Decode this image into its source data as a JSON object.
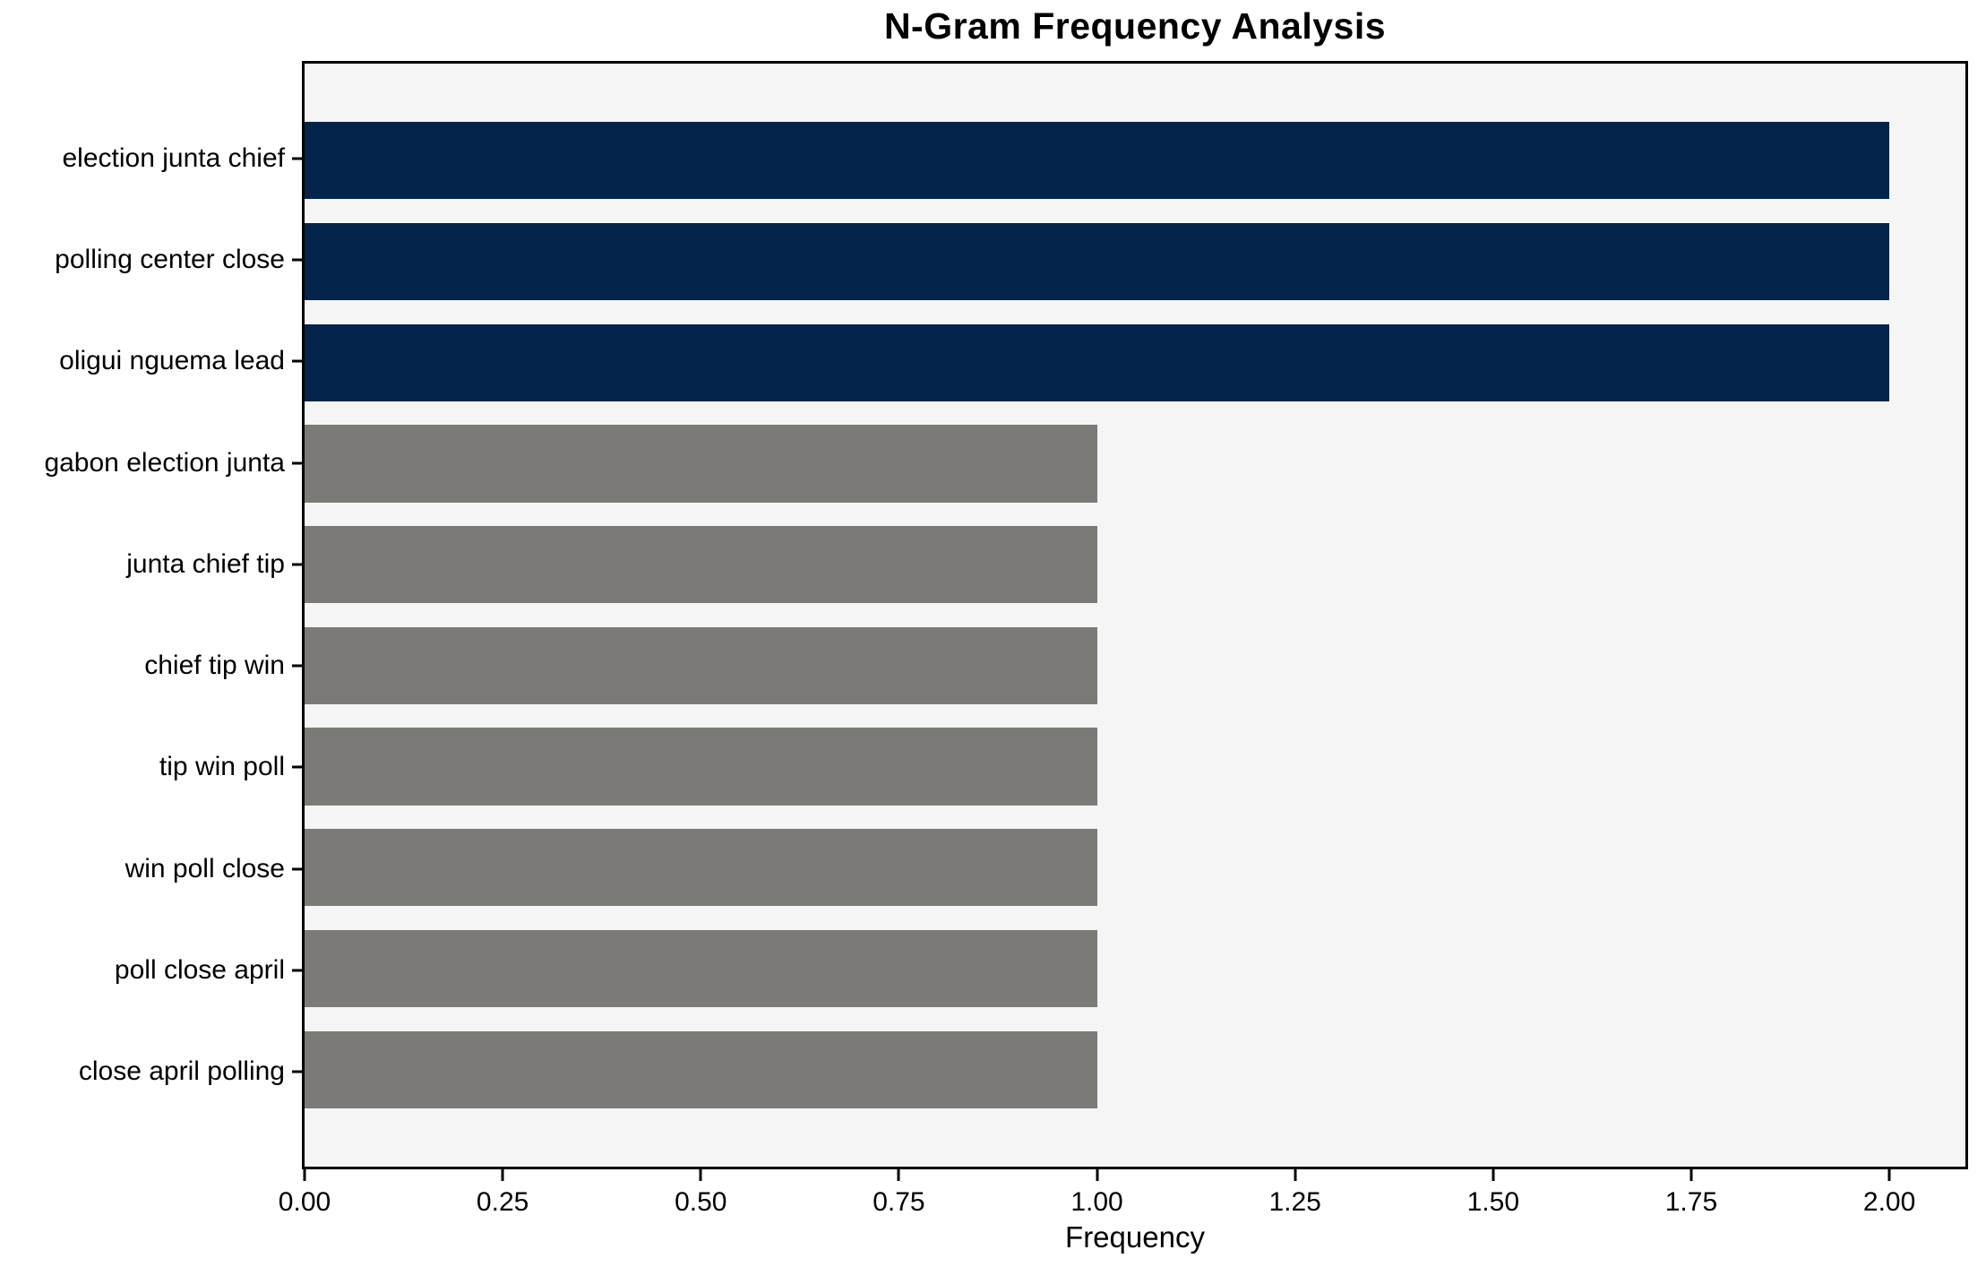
{
  "chart_data": {
    "type": "bar",
    "orientation": "horizontal",
    "title": "N-Gram Frequency Analysis",
    "xlabel": "Frequency",
    "ylabel": "",
    "categories": [
      "election junta chief",
      "polling center close",
      "oligui nguema lead",
      "gabon election junta",
      "junta chief tip",
      "chief tip win",
      "tip win poll",
      "win poll close",
      "poll close april",
      "close april polling"
    ],
    "values": [
      2,
      2,
      2,
      1,
      1,
      1,
      1,
      1,
      1,
      1
    ],
    "bar_colors": [
      "#04244b",
      "#04244b",
      "#04244b",
      "#7b7a77",
      "#7b7a77",
      "#7b7a77",
      "#7b7a77",
      "#7b7a77",
      "#7b7a77",
      "#7b7a77"
    ],
    "x_ticks": [
      {
        "value": 0.0,
        "label": "0.00"
      },
      {
        "value": 0.25,
        "label": "0.25"
      },
      {
        "value": 0.5,
        "label": "0.50"
      },
      {
        "value": 0.75,
        "label": "0.75"
      },
      {
        "value": 1.0,
        "label": "1.00"
      },
      {
        "value": 1.25,
        "label": "1.25"
      },
      {
        "value": 1.5,
        "label": "1.50"
      },
      {
        "value": 1.75,
        "label": "1.75"
      },
      {
        "value": 2.0,
        "label": "2.00"
      }
    ],
    "xlim": [
      0,
      2.096
    ],
    "grid": false,
    "legend_position": "none",
    "colors": {
      "plot_background": "#f5f5f6",
      "figure_background": "#ffffff",
      "axis": "#000000",
      "text": "#000000"
    }
  }
}
